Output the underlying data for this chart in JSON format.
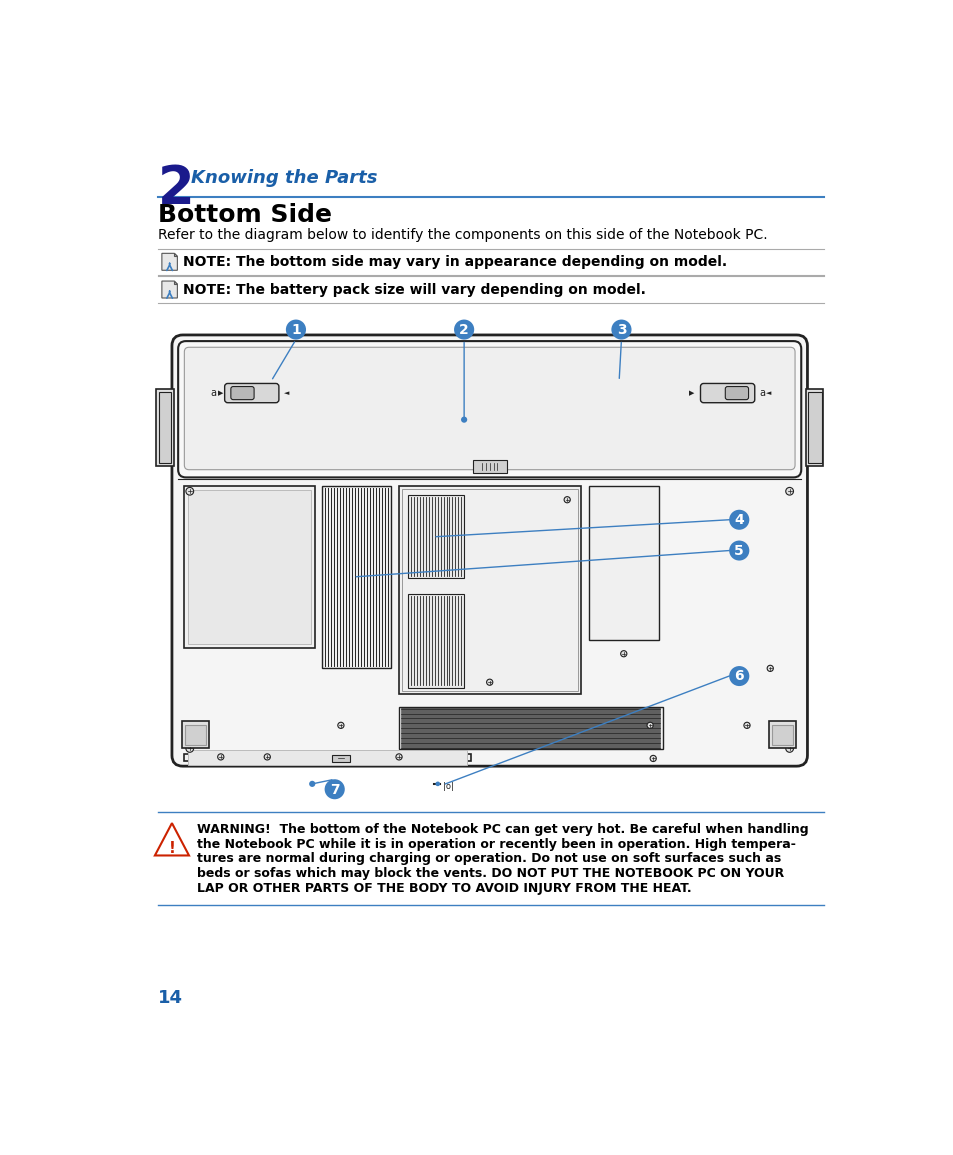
{
  "page_bg": "#ffffff",
  "chapter_num": "2",
  "chapter_num_color": "#1a1a8c",
  "chapter_title": "Knowing the Parts",
  "chapter_title_color": "#1a5fa8",
  "section_title": "Bottom Side",
  "section_desc": "Refer to the diagram below to identify the components on this side of the Notebook PC.",
  "note1_text": "NOTE: The bottom side may vary in appearance depending on model.",
  "note2_text": "NOTE: The battery pack size will vary depending on model.",
  "warning_text_1": "WARNING!  The bottom of the Notebook PC can get very hot. Be careful when handling",
  "warning_text_2": "the Notebook PC while it is in operation or recently been in operation. High tempera-",
  "warning_text_3": "tures are normal during charging or operation. Do not use on soft surfaces such as",
  "warning_text_4": "beds or sofas which may block the vents. DO NOT PUT THE NOTEBOOK PC ON YOUR",
  "warning_text_5": "LAP OR OTHER PARTS OF THE BODY TO AVOID INJURY FROM THE HEAT.",
  "page_number": "14",
  "page_number_color": "#1a5fa8",
  "blue_color": "#3d7fc1",
  "line_color": "#3d7fc1",
  "dark": "#222222",
  "gray_fill": "#f0f0f0",
  "med_gray": "#dddddd",
  "dark_gray": "#aaaaaa"
}
